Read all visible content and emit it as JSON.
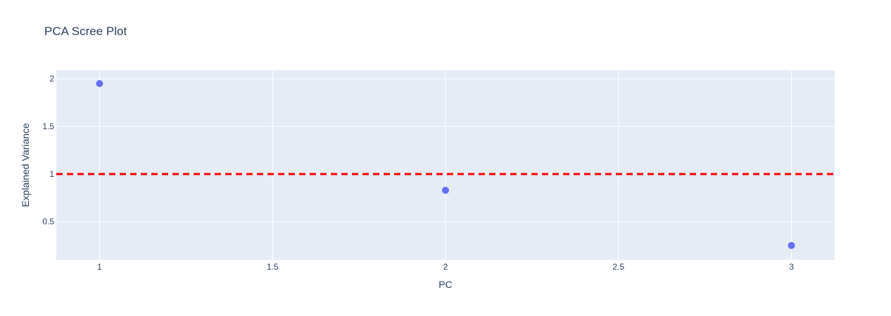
{
  "chart_data": {
    "type": "scatter",
    "title": "PCA Scree Plot",
    "xlabel": "PC",
    "ylabel": "Explained Variance",
    "x": [
      1,
      2,
      3
    ],
    "series": [
      {
        "values": [
          1.95,
          0.83,
          0.25
        ]
      }
    ],
    "xlim": [
      0.875,
      3.125
    ],
    "ylim": [
      0.1,
      2.09
    ],
    "x_ticks": [
      1,
      1.5,
      2,
      2.5,
      3
    ],
    "x_tick_labels": [
      "1",
      "1.5",
      "2",
      "2.5",
      "3"
    ],
    "y_ticks": [
      0.5,
      1,
      1.5,
      2
    ],
    "y_tick_labels": [
      "0.5",
      "1",
      "1.5",
      "2"
    ],
    "reference_line": {
      "y": 1,
      "style": "dashed",
      "color": "#ff0000"
    },
    "grid": true,
    "marker_color": "#636efa",
    "plot_background": "#e5ecf6",
    "grid_color": "#ffffff"
  }
}
